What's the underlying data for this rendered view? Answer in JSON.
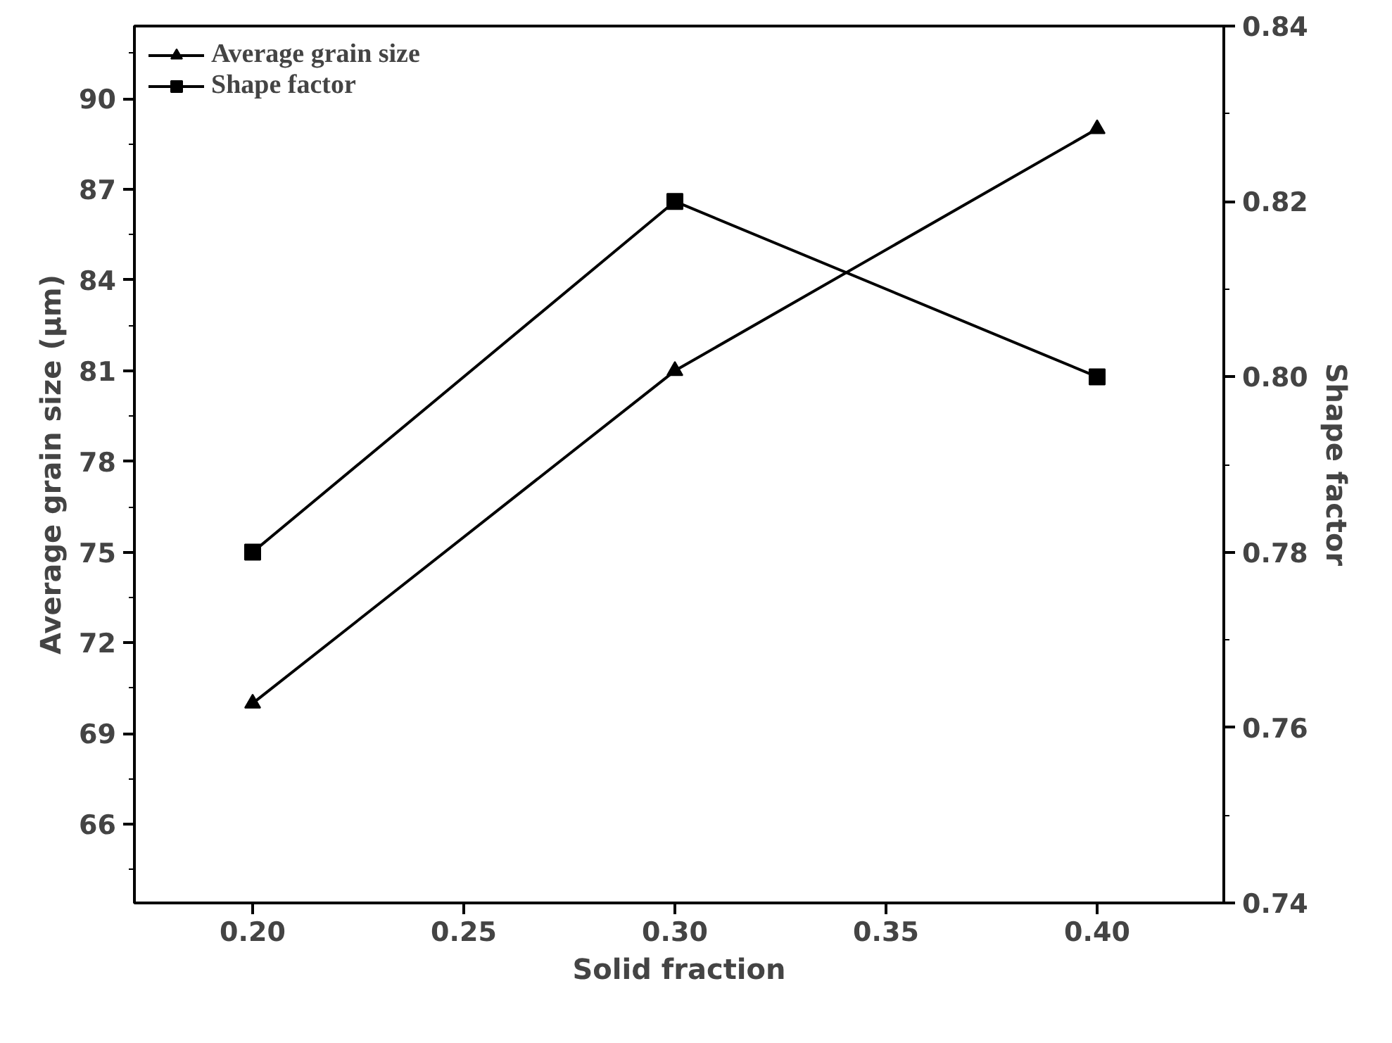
{
  "chart_data": {
    "type": "line",
    "xlabel": "Solid fraction",
    "ylabel": "Average grain size (μm)",
    "y2label": "Shape factor",
    "x": [
      0.2,
      0.3,
      0.4
    ],
    "series": [
      {
        "name": "Average grain size",
        "color": "#000000",
        "marker": "triangle",
        "values": [
          70,
          81,
          89
        ]
      },
      {
        "name": "Shape factor",
        "color": "#000000",
        "marker": "square",
        "axis": "y2",
        "values": [
          0.78,
          0.82,
          0.8
        ]
      }
    ],
    "xlim": [
      0.172,
      0.43
    ],
    "xticks": [
      {
        "value": 0.2,
        "label": "0.20"
      },
      {
        "value": 0.25,
        "label": "0.25"
      },
      {
        "value": 0.3,
        "label": "0.30"
      },
      {
        "value": 0.35,
        "label": "0.35"
      },
      {
        "value": 0.4,
        "label": "0.40"
      }
    ],
    "ylim": [
      63.4,
      92.4
    ],
    "yticks": [
      66,
      69,
      72,
      75,
      78,
      81,
      84,
      87,
      90
    ],
    "y2lim": [
      0.74,
      0.84
    ],
    "y2ticks": [
      0.74,
      0.76,
      0.78,
      {
        "value": 0.8,
        "label": "0.80"
      },
      0.82,
      0.84
    ],
    "legend": "top left",
    "grid": false,
    "line_style": "solid"
  }
}
